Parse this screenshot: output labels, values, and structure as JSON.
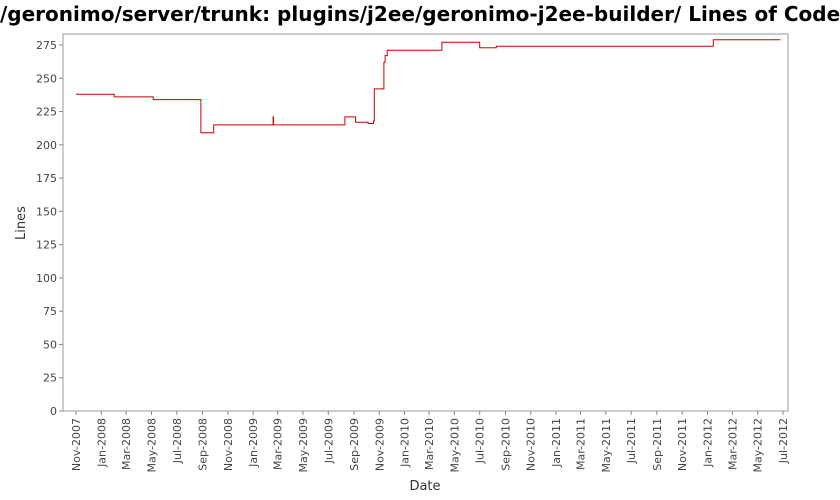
{
  "chart_data": {
    "type": "line",
    "title": "/geronimo/server/trunk: plugins/j2ee/geronimo-j2ee-builder/ Lines of Code",
    "xlabel": "Date",
    "ylabel": "Lines",
    "ylim": [
      0,
      280
    ],
    "xlim": [
      "2007-10-01",
      "2012-07-15"
    ],
    "grid": false,
    "yticks": [
      0,
      25,
      50,
      75,
      100,
      125,
      150,
      175,
      200,
      225,
      250,
      275
    ],
    "xticks": [
      {
        "date": "2007-11-01",
        "label": "Nov-2007"
      },
      {
        "date": "2008-01-01",
        "label": "Jan-2008"
      },
      {
        "date": "2008-03-01",
        "label": "Mar-2008"
      },
      {
        "date": "2008-05-01",
        "label": "May-2008"
      },
      {
        "date": "2008-07-01",
        "label": "Jul-2008"
      },
      {
        "date": "2008-09-01",
        "label": "Sep-2008"
      },
      {
        "date": "2008-11-01",
        "label": "Nov-2008"
      },
      {
        "date": "2009-01-01",
        "label": "Jan-2009"
      },
      {
        "date": "2009-03-01",
        "label": "Mar-2009"
      },
      {
        "date": "2009-05-01",
        "label": "May-2009"
      },
      {
        "date": "2009-07-01",
        "label": "Jul-2009"
      },
      {
        "date": "2009-09-01",
        "label": "Sep-2009"
      },
      {
        "date": "2009-11-01",
        "label": "Nov-2009"
      },
      {
        "date": "2010-01-01",
        "label": "Jan-2010"
      },
      {
        "date": "2010-03-01",
        "label": "Mar-2010"
      },
      {
        "date": "2010-05-01",
        "label": "May-2010"
      },
      {
        "date": "2010-07-01",
        "label": "Jul-2010"
      },
      {
        "date": "2010-09-01",
        "label": "Sep-2010"
      },
      {
        "date": "2010-11-01",
        "label": "Nov-2010"
      },
      {
        "date": "2011-01-01",
        "label": "Jan-2011"
      },
      {
        "date": "2011-03-01",
        "label": "Mar-2011"
      },
      {
        "date": "2011-05-01",
        "label": "May-2011"
      },
      {
        "date": "2011-07-01",
        "label": "Jul-2011"
      },
      {
        "date": "2011-09-01",
        "label": "Sep-2011"
      },
      {
        "date": "2011-11-01",
        "label": "Nov-2011"
      },
      {
        "date": "2012-01-01",
        "label": "Jan-2012"
      },
      {
        "date": "2012-03-01",
        "label": "Mar-2012"
      },
      {
        "date": "2012-05-01",
        "label": "May-2012"
      },
      {
        "date": "2012-07-01",
        "label": "Jul-2012"
      }
    ],
    "series": [
      {
        "color": "#cc0000",
        "step": true,
        "points": [
          [
            "2007-11-01",
            238
          ],
          [
            "2008-02-01",
            236
          ],
          [
            "2008-05-05",
            234
          ],
          [
            "2008-08-28",
            209
          ],
          [
            "2008-09-28",
            215
          ],
          [
            "2009-02-18",
            221
          ],
          [
            "2009-02-19",
            215
          ],
          [
            "2009-08-10",
            221
          ],
          [
            "2009-09-05",
            217
          ],
          [
            "2009-10-05",
            216
          ],
          [
            "2009-10-18",
            218
          ],
          [
            "2009-10-20",
            242
          ],
          [
            "2009-11-12",
            262
          ],
          [
            "2009-11-15",
            267
          ],
          [
            "2009-11-20",
            271
          ],
          [
            "2010-04-01",
            277
          ],
          [
            "2010-07-01",
            273
          ],
          [
            "2010-08-10",
            274
          ],
          [
            "2012-01-15",
            279
          ],
          [
            "2012-06-25",
            279
          ]
        ]
      }
    ]
  }
}
